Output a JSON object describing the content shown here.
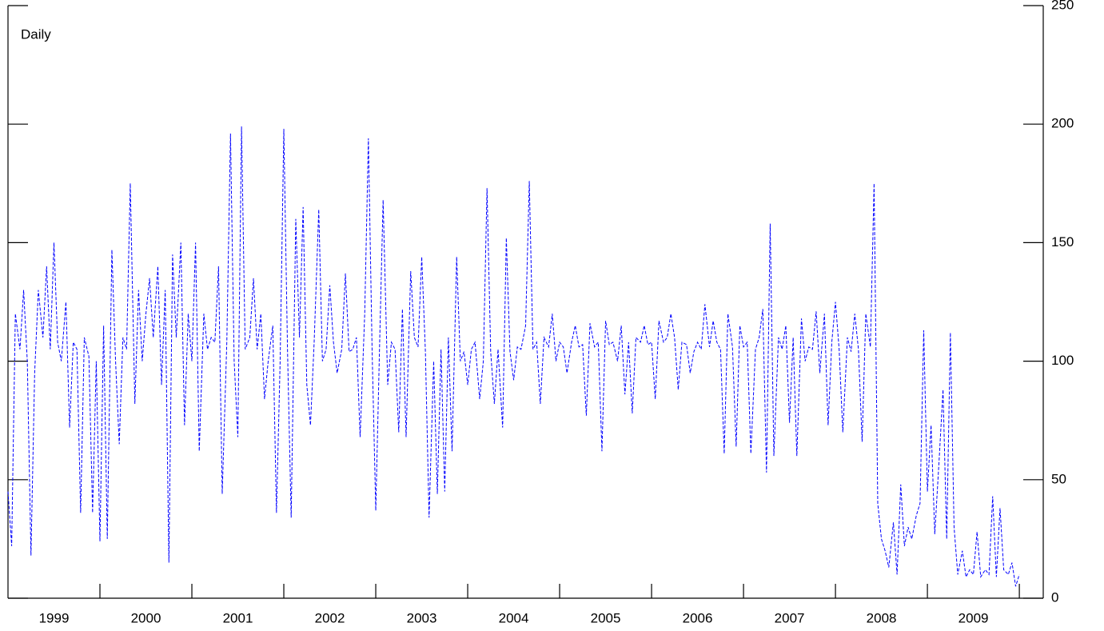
{
  "chart_data": {
    "type": "line",
    "annotation": "Daily",
    "color": "#0000ff",
    "dashed": true,
    "xlim": [
      1999,
      2010.26
    ],
    "ylim": [
      0,
      250
    ],
    "yticks": [
      0,
      50,
      100,
      150,
      200,
      250
    ],
    "xticks": [
      2000,
      2001,
      2002,
      2003,
      2004,
      2005,
      2006,
      2007,
      2008,
      2009,
      2010
    ],
    "xlabels": [
      {
        "value": 1999.5,
        "label": "1999"
      },
      {
        "value": 2000.5,
        "label": "2000"
      },
      {
        "value": 2001.5,
        "label": "2001"
      },
      {
        "value": 2002.5,
        "label": "2002"
      },
      {
        "value": 2003.5,
        "label": "2003"
      },
      {
        "value": 2004.5,
        "label": "2004"
      },
      {
        "value": 2005.5,
        "label": "2005"
      },
      {
        "value": 2006.5,
        "label": "2006"
      },
      {
        "value": 2007.5,
        "label": "2007"
      },
      {
        "value": 2008.5,
        "label": "2008"
      },
      {
        "value": 2009.5,
        "label": "2009"
      }
    ],
    "x": [
      1999.0,
      1999.04,
      1999.08,
      1999.13,
      1999.17,
      1999.21,
      1999.25,
      1999.29,
      1999.33,
      1999.38,
      1999.42,
      1999.46,
      1999.5,
      1999.54,
      1999.58,
      1999.63,
      1999.67,
      1999.71,
      1999.75,
      1999.79,
      1999.83,
      1999.88,
      1999.92,
      1999.96,
      2000.0,
      2000.04,
      2000.08,
      2000.13,
      2000.17,
      2000.21,
      2000.25,
      2000.29,
      2000.33,
      2000.38,
      2000.42,
      2000.46,
      2000.5,
      2000.54,
      2000.58,
      2000.63,
      2000.67,
      2000.71,
      2000.75,
      2000.79,
      2000.83,
      2000.88,
      2000.92,
      2000.96,
      2001.0,
      2001.04,
      2001.08,
      2001.13,
      2001.17,
      2001.21,
      2001.25,
      2001.29,
      2001.33,
      2001.38,
      2001.42,
      2001.46,
      2001.5,
      2001.54,
      2001.58,
      2001.63,
      2001.67,
      2001.71,
      2001.75,
      2001.79,
      2001.83,
      2001.88,
      2001.92,
      2001.96,
      2002.0,
      2002.04,
      2002.08,
      2002.13,
      2002.17,
      2002.21,
      2002.25,
      2002.29,
      2002.33,
      2002.38,
      2002.42,
      2002.46,
      2002.5,
      2002.54,
      2002.58,
      2002.63,
      2002.67,
      2002.71,
      2002.75,
      2002.79,
      2002.83,
      2002.88,
      2002.92,
      2002.96,
      2003.0,
      2003.04,
      2003.08,
      2003.13,
      2003.17,
      2003.21,
      2003.25,
      2003.29,
      2003.33,
      2003.38,
      2003.42,
      2003.46,
      2003.5,
      2003.54,
      2003.58,
      2003.63,
      2003.67,
      2003.71,
      2003.75,
      2003.79,
      2003.83,
      2003.88,
      2003.92,
      2003.96,
      2004.0,
      2004.04,
      2004.08,
      2004.13,
      2004.17,
      2004.21,
      2004.25,
      2004.29,
      2004.33,
      2004.38,
      2004.42,
      2004.46,
      2004.5,
      2004.54,
      2004.58,
      2004.63,
      2004.67,
      2004.71,
      2004.75,
      2004.79,
      2004.83,
      2004.88,
      2004.92,
      2004.96,
      2005.0,
      2005.04,
      2005.08,
      2005.13,
      2005.17,
      2005.21,
      2005.25,
      2005.29,
      2005.33,
      2005.38,
      2005.42,
      2005.46,
      2005.5,
      2005.54,
      2005.58,
      2005.63,
      2005.67,
      2005.71,
      2005.75,
      2005.79,
      2005.83,
      2005.88,
      2005.92,
      2005.96,
      2006.0,
      2006.04,
      2006.08,
      2006.13,
      2006.17,
      2006.21,
      2006.25,
      2006.29,
      2006.33,
      2006.38,
      2006.42,
      2006.46,
      2006.5,
      2006.54,
      2006.58,
      2006.63,
      2006.67,
      2006.71,
      2006.75,
      2006.79,
      2006.83,
      2006.88,
      2006.92,
      2006.96,
      2007.0,
      2007.04,
      2007.08,
      2007.13,
      2007.17,
      2007.21,
      2007.25,
      2007.29,
      2007.33,
      2007.38,
      2007.42,
      2007.46,
      2007.5,
      2007.54,
      2007.58,
      2007.63,
      2007.67,
      2007.71,
      2007.75,
      2007.79,
      2007.83,
      2007.88,
      2007.92,
      2007.96,
      2008.0,
      2008.04,
      2008.08,
      2008.13,
      2008.17,
      2008.21,
      2008.25,
      2008.29,
      2008.33,
      2008.38,
      2008.42,
      2008.46,
      2008.5,
      2008.54,
      2008.58,
      2008.63,
      2008.67,
      2008.71,
      2008.75,
      2008.79,
      2008.83,
      2008.88,
      2008.92,
      2008.96,
      2009.0,
      2009.04,
      2009.08,
      2009.13,
      2009.17,
      2009.21,
      2009.25,
      2009.29,
      2009.33,
      2009.38,
      2009.42,
      2009.46,
      2009.5,
      2009.54,
      2009.58,
      2009.63,
      2009.67,
      2009.71,
      2009.75,
      2009.79,
      2009.83,
      2009.88,
      2009.92,
      2009.96,
      2010.0
    ],
    "values": [
      45,
      22,
      120,
      105,
      130,
      100,
      18,
      95,
      130,
      110,
      140,
      105,
      150,
      108,
      100,
      125,
      72,
      108,
      105,
      36,
      110,
      102,
      36,
      100,
      24,
      115,
      25,
      147,
      100,
      65,
      110,
      105,
      175,
      82,
      130,
      100,
      120,
      135,
      110,
      140,
      90,
      130,
      15,
      145,
      110,
      150,
      73,
      120,
      100,
      150,
      62,
      120,
      105,
      110,
      108,
      140,
      44,
      108,
      196,
      100,
      68,
      199,
      105,
      110,
      135,
      105,
      120,
      84,
      100,
      115,
      36,
      100,
      198,
      105,
      34,
      160,
      110,
      165,
      90,
      73,
      108,
      164,
      100,
      105,
      132,
      108,
      95,
      105,
      137,
      104,
      105,
      110,
      68,
      120,
      194,
      105,
      37,
      104,
      168,
      90,
      108,
      105,
      70,
      122,
      68,
      138,
      110,
      106,
      144,
      104,
      34,
      100,
      44,
      105,
      45,
      110,
      62,
      144,
      100,
      104,
      90,
      105,
      108,
      84,
      100,
      173,
      104,
      82,
      105,
      72,
      152,
      104,
      92,
      106,
      105,
      115,
      176,
      105,
      108,
      82,
      110,
      106,
      120,
      100,
      108,
      106,
      95,
      108,
      115,
      106,
      107,
      77,
      116,
      106,
      108,
      62,
      117,
      107,
      108,
      100,
      115,
      86,
      108,
      78,
      110,
      108,
      115,
      107,
      108,
      84,
      117,
      108,
      110,
      120,
      110,
      88,
      108,
      107,
      95,
      104,
      108,
      105,
      124,
      106,
      117,
      108,
      105,
      61,
      120,
      106,
      64,
      115,
      106,
      108,
      61,
      105,
      110,
      122,
      53,
      158,
      60,
      110,
      105,
      115,
      74,
      110,
      60,
      118,
      100,
      106,
      105,
      121,
      95,
      120,
      73,
      108,
      125,
      105,
      70,
      110,
      104,
      120,
      105,
      66,
      120,
      106,
      175,
      40,
      25,
      20,
      13,
      32,
      10,
      48,
      22,
      30,
      25,
      35,
      40,
      113,
      45,
      73,
      27,
      60,
      88,
      25,
      112,
      30,
      10,
      20,
      9,
      12,
      10,
      28,
      9,
      12,
      10,
      43,
      9,
      38,
      12,
      10,
      15,
      5,
      10
    ]
  }
}
